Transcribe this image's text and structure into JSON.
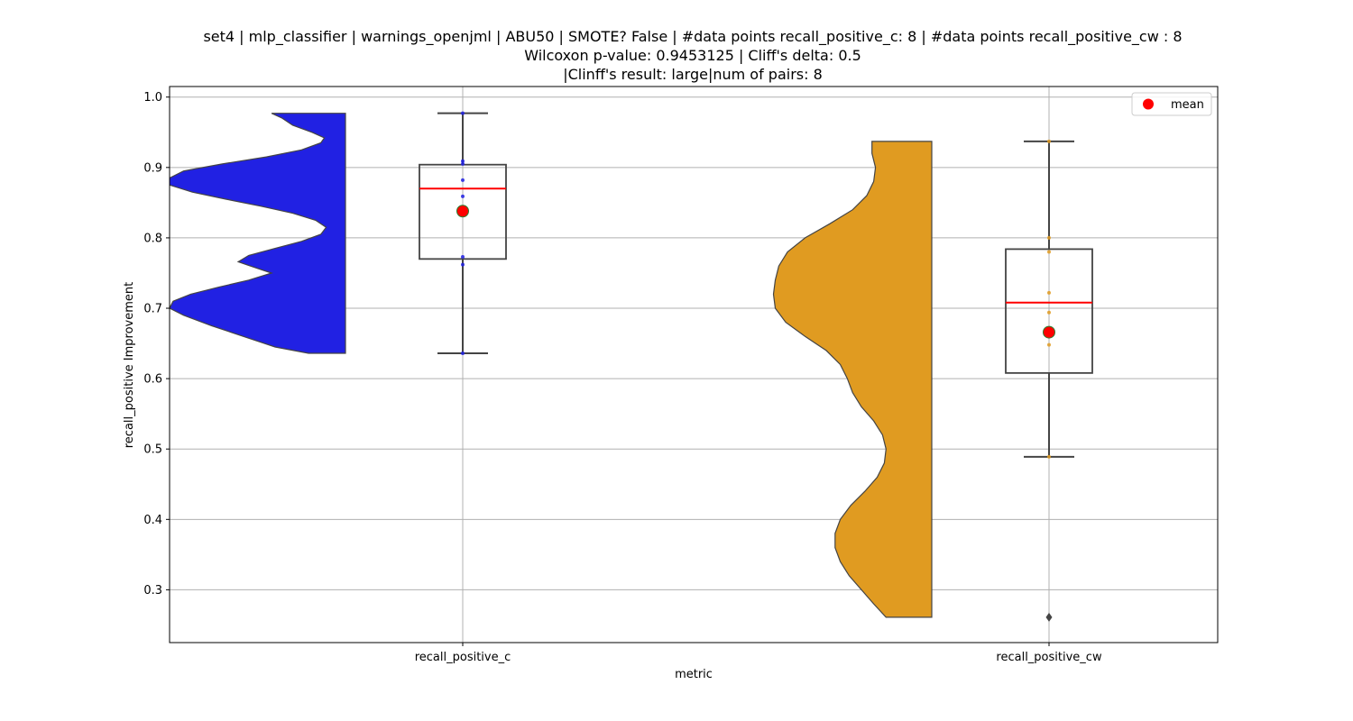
{
  "chart_data": {
    "type": "violin+box",
    "title_lines": [
      "set4 | mlp_classifier | warnings_openjml | ABU50 | SMOTE? False | #data points recall_positive_c: 8 | #data points recall_positive_cw : 8",
      "Wilcoxon p-value: 0.9453125 | Cliff's delta: 0.5",
      "|Clinff's result: large|num of pairs: 8"
    ],
    "xlabel": "metric",
    "ylabel": "recall_positive Improvement",
    "ylim": [
      0.225,
      1.015
    ],
    "y_ticks": [
      "0.3",
      "0.4",
      "0.5",
      "0.6",
      "0.7",
      "0.8",
      "0.9",
      "1.0"
    ],
    "categories": [
      "recall_positive_c",
      "recall_positive_cw"
    ],
    "grid": true,
    "legend": {
      "position": "top-right",
      "entries": [
        {
          "label": "mean",
          "color": "#ff0000"
        }
      ]
    },
    "series": [
      {
        "name": "recall_positive_c",
        "violin_color": "#2121e3",
        "point_color": "#2121e3",
        "points": [
          0.977,
          0.909,
          0.905,
          0.882,
          0.859,
          0.773,
          0.762,
          0.636
        ],
        "box": {
          "whisker_low": 0.636,
          "q1": 0.77,
          "median": 0.87,
          "q3": 0.904,
          "whisker_high": 0.977
        },
        "mean": 0.838,
        "outliers": [],
        "violin_profile": [
          [
            0.636,
            0.21
          ],
          [
            0.645,
            0.4
          ],
          [
            0.66,
            0.58
          ],
          [
            0.675,
            0.76
          ],
          [
            0.69,
            0.92
          ],
          [
            0.7,
            1.0
          ],
          [
            0.71,
            0.98
          ],
          [
            0.72,
            0.88
          ],
          [
            0.73,
            0.72
          ],
          [
            0.74,
            0.55
          ],
          [
            0.75,
            0.42
          ],
          [
            0.76,
            0.54
          ],
          [
            0.766,
            0.61
          ],
          [
            0.775,
            0.55
          ],
          [
            0.785,
            0.4
          ],
          [
            0.795,
            0.25
          ],
          [
            0.805,
            0.14
          ],
          [
            0.815,
            0.11
          ],
          [
            0.825,
            0.17
          ],
          [
            0.835,
            0.3
          ],
          [
            0.845,
            0.48
          ],
          [
            0.855,
            0.68
          ],
          [
            0.865,
            0.87
          ],
          [
            0.875,
            1.0
          ],
          [
            0.885,
            1.0
          ],
          [
            0.895,
            0.92
          ],
          [
            0.905,
            0.7
          ],
          [
            0.915,
            0.45
          ],
          [
            0.925,
            0.25
          ],
          [
            0.935,
            0.14
          ],
          [
            0.942,
            0.12
          ],
          [
            0.95,
            0.19
          ],
          [
            0.96,
            0.3
          ],
          [
            0.97,
            0.36
          ],
          [
            0.977,
            0.42
          ]
        ]
      },
      {
        "name": "recall_positive_cw",
        "violin_color": "#e09b21",
        "point_color": "#e09b21",
        "points": [
          0.937,
          0.8,
          0.78,
          0.722,
          0.694,
          0.648,
          0.489,
          0.261
        ],
        "box": {
          "whisker_low": 0.489,
          "q1": 0.608,
          "median": 0.708,
          "q3": 0.784,
          "whisker_high": 0.937
        },
        "mean": 0.666,
        "outliers": [
          0.261
        ],
        "violin_profile": [
          [
            0.261,
            0.26
          ],
          [
            0.28,
            0.33
          ],
          [
            0.3,
            0.4
          ],
          [
            0.32,
            0.47
          ],
          [
            0.34,
            0.52
          ],
          [
            0.36,
            0.55
          ],
          [
            0.38,
            0.55
          ],
          [
            0.4,
            0.52
          ],
          [
            0.42,
            0.46
          ],
          [
            0.44,
            0.38
          ],
          [
            0.46,
            0.31
          ],
          [
            0.48,
            0.27
          ],
          [
            0.5,
            0.26
          ],
          [
            0.52,
            0.28
          ],
          [
            0.54,
            0.33
          ],
          [
            0.56,
            0.4
          ],
          [
            0.58,
            0.45
          ],
          [
            0.6,
            0.48
          ],
          [
            0.62,
            0.52
          ],
          [
            0.64,
            0.6
          ],
          [
            0.66,
            0.72
          ],
          [
            0.68,
            0.83
          ],
          [
            0.7,
            0.89
          ],
          [
            0.72,
            0.9
          ],
          [
            0.74,
            0.89
          ],
          [
            0.76,
            0.87
          ],
          [
            0.78,
            0.82
          ],
          [
            0.8,
            0.72
          ],
          [
            0.82,
            0.58
          ],
          [
            0.84,
            0.45
          ],
          [
            0.86,
            0.37
          ],
          [
            0.88,
            0.33
          ],
          [
            0.9,
            0.32
          ],
          [
            0.92,
            0.34
          ],
          [
            0.937,
            0.34
          ]
        ]
      }
    ]
  }
}
